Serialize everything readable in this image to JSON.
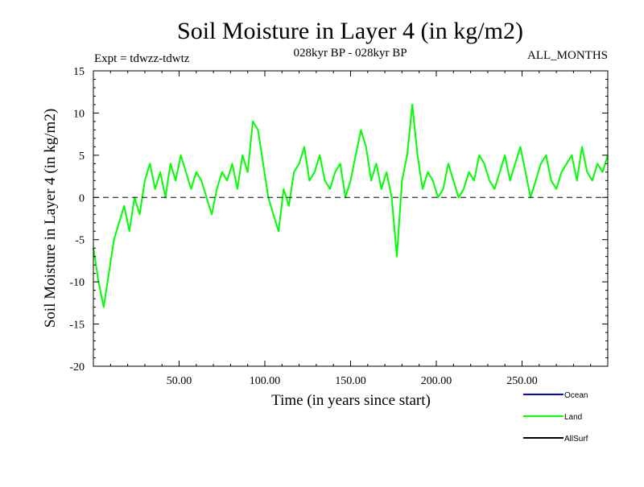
{
  "chart_data": {
    "type": "line",
    "title": "Soil Moisture in Layer 4 (in kg/m2)",
    "subtitle_left": "Expt = tdwzz-tdwtz",
    "subtitle_center": "028kyr BP - 028kyr BP",
    "subtitle_right": "ALL_MONTHS",
    "xlabel": "Time (in years since start)",
    "ylabel": "Soil Moisture in Layer 4 (in kg/m2)",
    "xlim": [
      0,
      300
    ],
    "ylim": [
      -20,
      15
    ],
    "x_ticks": [
      50,
      100,
      150,
      200,
      250
    ],
    "x_tick_labels": [
      "50.00",
      "100.00",
      "150.00",
      "200.00",
      "250.00"
    ],
    "y_ticks": [
      15,
      10,
      5,
      0,
      -5,
      -10,
      -15,
      -20
    ],
    "y_tick_labels": [
      "15",
      "10",
      "5",
      "0",
      "-5",
      "-10",
      "-15",
      "-20"
    ],
    "reference_line": {
      "y": 0,
      "style": "dashed"
    },
    "legend": [
      {
        "name": "Ocean",
        "color": "#0000ff"
      },
      {
        "name": "Land",
        "color": "#00ff00"
      },
      {
        "name": "AllSurf",
        "color": "#000000"
      }
    ],
    "series": [
      {
        "name": "Land",
        "color": "#00ff00",
        "x": [
          0,
          3,
          6,
          9,
          12,
          15,
          18,
          21,
          24,
          27,
          30,
          33,
          36,
          39,
          42,
          45,
          48,
          51,
          54,
          57,
          60,
          63,
          66,
          69,
          72,
          75,
          78,
          81,
          84,
          87,
          90,
          93,
          96,
          99,
          102,
          105,
          108,
          111,
          114,
          117,
          120,
          123,
          126,
          129,
          132,
          135,
          138,
          141,
          144,
          147,
          150,
          153,
          156,
          159,
          162,
          165,
          168,
          171,
          174,
          177,
          180,
          183,
          186,
          189,
          192,
          195,
          198,
          201,
          204,
          207,
          210,
          213,
          216,
          219,
          222,
          225,
          228,
          231,
          234,
          237,
          240,
          243,
          246,
          249,
          252,
          255,
          258,
          261,
          264,
          267,
          270,
          273,
          276,
          279,
          282,
          285,
          288,
          291,
          294,
          297,
          300
        ],
        "values": [
          -6,
          -10,
          -13,
          -9,
          -5,
          -3,
          -1,
          -4,
          0,
          -2,
          2,
          4,
          1,
          3,
          0,
          4,
          2,
          5,
          3,
          1,
          3,
          2,
          0,
          -2,
          1,
          3,
          2,
          4,
          1,
          5,
          3,
          9,
          8,
          4,
          0,
          -2,
          -4,
          1,
          -1,
          3,
          4,
          6,
          2,
          3,
          5,
          2,
          1,
          3,
          4,
          0,
          2,
          5,
          8,
          6,
          2,
          4,
          1,
          3,
          0,
          -7,
          2,
          5,
          11,
          5,
          1,
          3,
          2,
          0,
          1,
          4,
          2,
          0,
          1,
          3,
          2,
          5,
          4,
          2,
          1,
          3,
          5,
          2,
          4,
          6,
          3,
          0,
          2,
          4,
          5,
          2,
          1,
          3,
          4,
          5,
          2,
          6,
          3,
          2,
          4,
          3,
          5
        ]
      }
    ]
  }
}
